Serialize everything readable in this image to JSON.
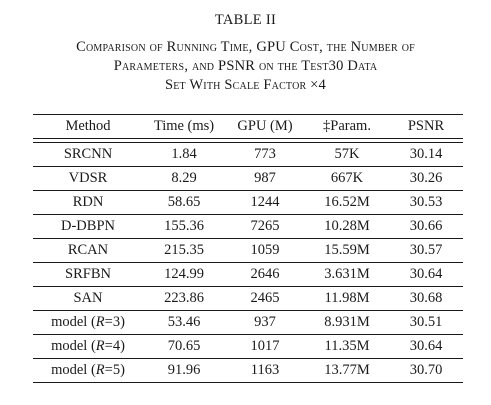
{
  "table_label": "TABLE II",
  "caption_lines": [
    "Comparison of Running Time, GPU Cost, the Number of",
    "Parameters, and PSNR on the Test30 Data",
    "Set With Scale Factor ×4"
  ],
  "columns": [
    "Method",
    "Time (ms)",
    "GPU (M)",
    "‡Param.",
    "PSNR"
  ],
  "rows": [
    {
      "method": "SRCNN",
      "time": "1.84",
      "gpu": "773",
      "param": "57K",
      "psnr": "30.14"
    },
    {
      "method": "VDSR",
      "time": "8.29",
      "gpu": "987",
      "param": "667K",
      "psnr": "30.26"
    },
    {
      "method": "RDN",
      "time": "58.65",
      "gpu": "1244",
      "param": "16.52M",
      "psnr": "30.53"
    },
    {
      "method": "D-DBPN",
      "time": "155.36",
      "gpu": "7265",
      "param": "10.28M",
      "psnr": "30.66"
    },
    {
      "method": "RCAN",
      "time": "215.35",
      "gpu": "1059",
      "param": "15.59M",
      "psnr": "30.57"
    },
    {
      "method": "SRFBN",
      "time": "124.99",
      "gpu": "2646",
      "param": "3.631M",
      "psnr": "30.64"
    },
    {
      "method": "SAN",
      "time": "223.86",
      "gpu": "2465",
      "param": "11.98M",
      "psnr": "30.68"
    },
    {
      "method_prefix": "model (",
      "method_var": "R",
      "method_suffix": "=3)",
      "time": "53.46",
      "gpu": "937",
      "param": "8.931M",
      "psnr": "30.51"
    },
    {
      "method_prefix": "model (",
      "method_var": "R",
      "method_suffix": "=4)",
      "time": "70.65",
      "gpu": "1017",
      "param": "11.35M",
      "psnr": "30.64"
    },
    {
      "method_prefix": "model (",
      "method_var": "R",
      "method_suffix": "=5)",
      "time": "91.96",
      "gpu": "1163",
      "param": "13.77M",
      "psnr": "30.70"
    }
  ]
}
